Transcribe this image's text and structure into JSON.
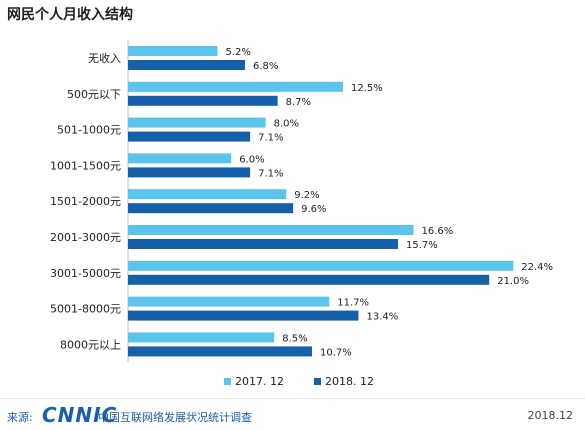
{
  "title": "网民个人月收入结构",
  "colors": {
    "series_2017": "#5bc4ea",
    "series_2018": "#1560a8"
  },
  "chart_data": {
    "type": "bar",
    "orientation": "horizontal",
    "categories": [
      "无收入",
      "500元以下",
      "501-1000元",
      "1001-1500元",
      "1501-2000元",
      "2001-3000元",
      "3001-5000元",
      "5001-8000元",
      "8000元以上"
    ],
    "series": [
      {
        "name": "2017. 12",
        "values": [
          5.2,
          12.5,
          8.0,
          6.0,
          9.2,
          16.6,
          22.4,
          11.7,
          8.5
        ]
      },
      {
        "name": "2018. 12",
        "values": [
          6.8,
          8.7,
          7.1,
          7.1,
          9.6,
          15.7,
          21.0,
          13.4,
          10.7
        ]
      }
    ],
    "value_suffix": "%",
    "legend_position": "bottom",
    "grid": false
  },
  "footer": {
    "source_label": "来源:",
    "logo": "CNNIC",
    "org": "中国互联网络发展状况统计调查",
    "date": "2018.12"
  }
}
